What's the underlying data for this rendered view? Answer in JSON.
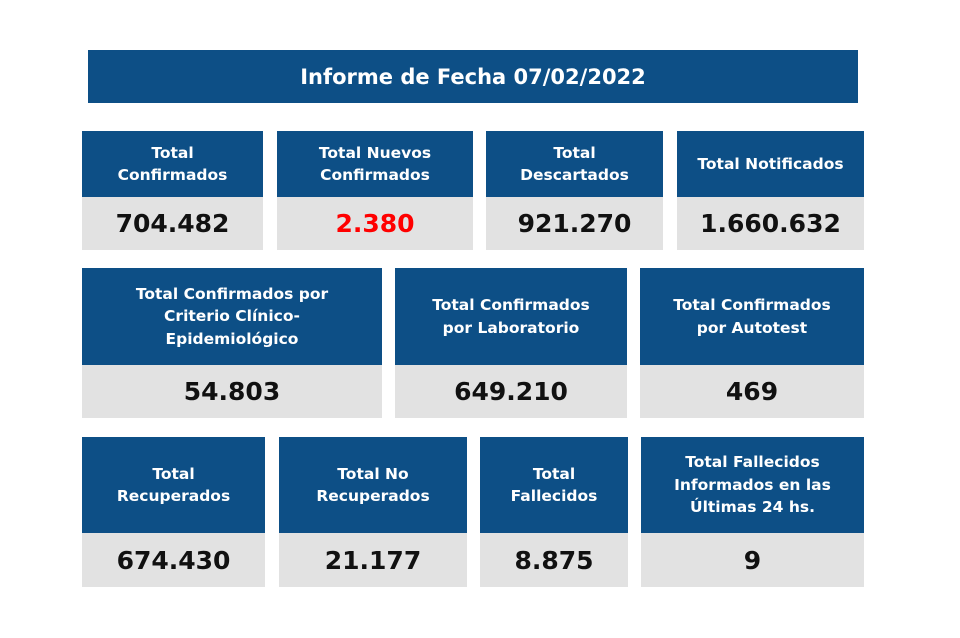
{
  "header": {
    "title": "Informe de Fecha 07/02/2022"
  },
  "rows": [
    {
      "cards": [
        {
          "label": "Total\nConfirmados",
          "value": "704.482"
        },
        {
          "label": "Total Nuevos\nConfirmados",
          "value": "2.380",
          "color": "#ff0000"
        },
        {
          "label": "Total\nDescartados",
          "value": "921.270"
        },
        {
          "label": "Total Notificados",
          "value": "1.660.632"
        }
      ]
    },
    {
      "cards": [
        {
          "label": "Total Confirmados por\nCriterio Clínico-\nEpidemiológico",
          "value": "54.803"
        },
        {
          "label": "Total Confirmados\npor Laboratorio",
          "value": "649.210"
        },
        {
          "label": "Total Confirmados\npor Autotest",
          "value": "469"
        }
      ]
    },
    {
      "cards": [
        {
          "label": "Total\nRecuperados",
          "value": "674.430"
        },
        {
          "label": "Total No\nRecuperados",
          "value": "21.177"
        },
        {
          "label": "Total\nFallecidos",
          "value": "8.875"
        },
        {
          "label": "Total Fallecidos\nInformados en las\nÚltimas 24 hs.",
          "value": "9"
        }
      ]
    }
  ]
}
